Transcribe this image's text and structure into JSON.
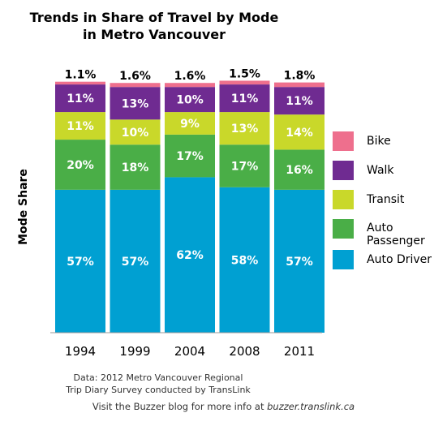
{
  "title_line1": "Trends in Share of Travel by Mode",
  "title_line2": "in Metro Vancouver",
  "source_line1": "Data: 2012 Metro Vancouver Regional",
  "source_line2": "Trip Diary Survey conducted by TransLink",
  "footer_text": "Visit the Buzzer blog for more info at",
  "footer_link": "buzzer.translink.ca",
  "chart_data": {
    "type": "bar",
    "stacked": true,
    "ylabel": "Mode Share",
    "categories": [
      "1994",
      "1999",
      "2004",
      "2008",
      "2011"
    ],
    "ylim": [
      0,
      100
    ],
    "series": [
      {
        "name": "Auto Driver",
        "color": "#00a0d2",
        "values": [
          57,
          57,
          62,
          58,
          57
        ],
        "labels": [
          "57%",
          "57%",
          "62%",
          "58%",
          "57%"
        ]
      },
      {
        "name": "Auto Passenger",
        "color": "#4aae47",
        "values": [
          20,
          18,
          17,
          17,
          16
        ],
        "labels": [
          "20%",
          "18%",
          "17%",
          "17%",
          "16%"
        ]
      },
      {
        "name": "Transit",
        "color": "#c9d82a",
        "values": [
          11,
          10,
          9,
          13,
          14
        ],
        "labels": [
          "11%",
          "10%",
          "9%",
          "13%",
          "14%"
        ]
      },
      {
        "name": "Walk",
        "color": "#6f2b91",
        "values": [
          11,
          13,
          10,
          11,
          11
        ],
        "labels": [
          "11%",
          "13%",
          "10%",
          "11%",
          "11%"
        ]
      },
      {
        "name": "Bike",
        "color": "#ee6f8d",
        "values": [
          1.1,
          1.6,
          1.6,
          1.5,
          1.8
        ],
        "labels": [
          "1.1%",
          "1.6%",
          "1.6%",
          "1.5%",
          "1.8%"
        ]
      }
    ],
    "legend": [
      {
        "name": "Bike",
        "color": "#ee6f8d"
      },
      {
        "name": "Walk",
        "color": "#6f2b91"
      },
      {
        "name": "Transit",
        "color": "#c9d82a"
      },
      {
        "name": "Auto Passenger",
        "color": "#4aae47"
      },
      {
        "name": "Auto Driver",
        "color": "#00a0d2"
      }
    ]
  }
}
